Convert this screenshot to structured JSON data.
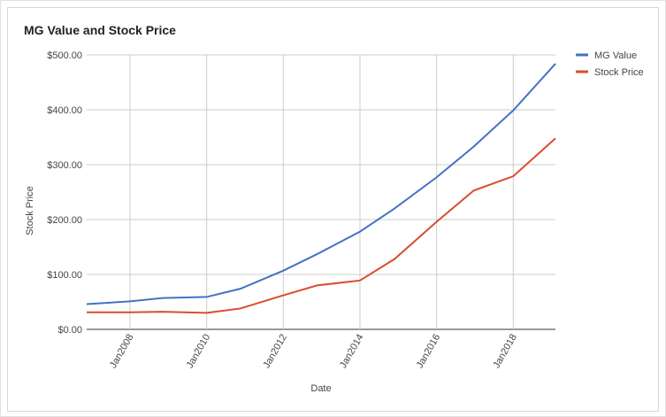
{
  "chart_data": {
    "type": "line",
    "title": "MG Value and Stock Price",
    "x_label": "Date",
    "y_label": "Stock Price",
    "x": [
      2006.87,
      2008.0,
      2008.85,
      2010.0,
      2010.88,
      2012.0,
      2012.88,
      2014.0,
      2014.9,
      2016.0,
      2016.97,
      2018.0,
      2019.1
    ],
    "series": [
      {
        "name": "MG Value",
        "color": "#4472c4",
        "values": [
          46,
          51,
          57,
          59,
          74,
          107,
          137,
          178,
          220,
          277,
          333,
          399,
          484
        ]
      },
      {
        "name": "Stock Price",
        "color": "#db4c2f",
        "values": [
          31,
          31,
          32,
          30,
          38,
          62,
          80,
          89,
          128,
          196,
          253,
          279,
          348
        ]
      }
    ],
    "xlim": [
      2006.87,
      2019.1
    ],
    "xticks": [
      {
        "value": 2008,
        "label": "Jan2008"
      },
      {
        "value": 2010,
        "label": "Jan2010"
      },
      {
        "value": 2012,
        "label": "Jan2012"
      },
      {
        "value": 2014,
        "label": "Jan2014"
      },
      {
        "value": 2016,
        "label": "Jan2016"
      },
      {
        "value": 2018,
        "label": "Jan2018"
      }
    ],
    "ylim": [
      0,
      500
    ],
    "yticks": [
      {
        "value": 0,
        "label": "$0.00"
      },
      {
        "value": 100,
        "label": "$100.00"
      },
      {
        "value": 200,
        "label": "$200.00"
      },
      {
        "value": 300,
        "label": "$300.00"
      },
      {
        "value": 400,
        "label": "$400.00"
      },
      {
        "value": 500,
        "label": "$500.00"
      }
    ],
    "grid": true,
    "legend": "right"
  }
}
